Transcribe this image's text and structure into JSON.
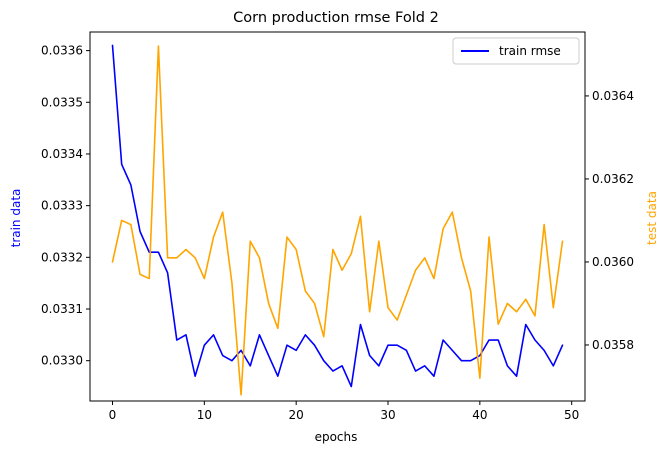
{
  "chart_data": {
    "type": "line",
    "title": "Corn production rmse Fold 2",
    "xlabel": "epochs",
    "ylabel_left": "train data",
    "ylabel_right": "test data",
    "xlim": [
      -2.45,
      51.45
    ],
    "ylim_left": [
      0.032922,
      0.033636
    ],
    "ylim_right": [
      0.035665,
      0.036554
    ],
    "x_ticks": [
      0,
      10,
      20,
      30,
      40,
      50
    ],
    "y_ticks_left": [
      "0.0330",
      "0.0331",
      "0.0332",
      "0.0333",
      "0.0334",
      "0.0335",
      "0.0336"
    ],
    "y_ticks_right": [
      "0.0358",
      "0.0360",
      "0.0362",
      "0.0364"
    ],
    "legend": {
      "placement": "top-right",
      "entries": [
        "train rmse"
      ]
    },
    "grid": false,
    "colors": {
      "train": "#0000ff",
      "test": "#ffa500",
      "left_label": "#0000ff",
      "right_label": "#ffa500"
    },
    "series": [
      {
        "name": "train rmse",
        "axis": "left",
        "x": [
          0,
          1,
          2,
          3,
          4,
          5,
          6,
          7,
          8,
          9,
          10,
          11,
          12,
          13,
          14,
          15,
          16,
          17,
          18,
          19,
          20,
          21,
          22,
          23,
          24,
          25,
          26,
          27,
          28,
          29,
          30,
          31,
          32,
          33,
          34,
          35,
          36,
          37,
          38,
          39,
          40,
          41,
          42,
          43,
          44,
          45,
          46,
          47,
          48,
          49
        ],
        "values": [
          0.03361,
          0.03338,
          0.03334,
          0.03325,
          0.03321,
          0.03321,
          0.03317,
          0.03304,
          0.03305,
          0.03297,
          0.03303,
          0.03305,
          0.03301,
          0.033,
          0.03302,
          0.03299,
          0.03305,
          0.03301,
          0.03297,
          0.03303,
          0.03302,
          0.03305,
          0.03303,
          0.033,
          0.03298,
          0.03299,
          0.03295,
          0.03307,
          0.03301,
          0.03299,
          0.03303,
          0.03303,
          0.03302,
          0.03298,
          0.03299,
          0.03297,
          0.03304,
          0.03302,
          0.033,
          0.033,
          0.03301,
          0.03304,
          0.03304,
          0.03299,
          0.03297,
          0.03307,
          0.03304,
          0.03302,
          0.03299,
          0.03303
        ]
      },
      {
        "axis": "right",
        "x": [
          0,
          1,
          2,
          3,
          4,
          5,
          6,
          7,
          8,
          9,
          10,
          11,
          12,
          13,
          14,
          15,
          16,
          17,
          18,
          19,
          20,
          21,
          22,
          23,
          24,
          25,
          26,
          27,
          28,
          29,
          30,
          31,
          32,
          33,
          34,
          35,
          36,
          37,
          38,
          39,
          40,
          41,
          42,
          43,
          44,
          45,
          46,
          47,
          48,
          49
        ],
        "values": [
          0.036,
          0.0361,
          0.03609,
          0.03597,
          0.03596,
          0.03652,
          0.03601,
          0.03601,
          0.03603,
          0.03601,
          0.03596,
          0.03606,
          0.03612,
          0.03595,
          0.03568,
          0.03605,
          0.03601,
          0.0359,
          0.03584,
          0.03606,
          0.03603,
          0.03593,
          0.0359,
          0.03582,
          0.03603,
          0.03598,
          0.03602,
          0.03611,
          0.03588,
          0.03605,
          0.03589,
          0.03586,
          0.03592,
          0.03598,
          0.03601,
          0.03596,
          0.03608,
          0.03612,
          0.03601,
          0.03593,
          0.03572,
          0.03606,
          0.03585,
          0.0359,
          0.03588,
          0.03591,
          0.03587,
          0.03609,
          0.03589,
          0.03605
        ]
      }
    ]
  }
}
